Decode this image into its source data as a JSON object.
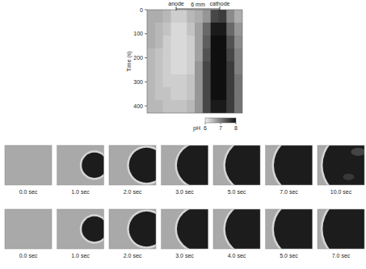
{
  "chart_data": {
    "type": "heatmap",
    "y_label": "Time (s)",
    "ylim": [
      0,
      430
    ],
    "yticks": [
      0,
      100,
      200,
      300,
      400
    ],
    "annotations": [
      "anode",
      "6 mm",
      "cathode"
    ],
    "cells": [
      [
        6.6,
        6.6,
        6.5,
        6.3,
        6.3,
        6.5,
        6.6,
        6.8,
        7.5,
        7.6,
        6.9,
        6.6
      ],
      [
        6.6,
        6.5,
        6.4,
        6.2,
        6.2,
        6.4,
        6.7,
        7.2,
        7.9,
        7.9,
        7.2,
        6.8
      ],
      [
        6.6,
        6.5,
        6.3,
        6.2,
        6.2,
        6.3,
        6.7,
        7.3,
        8.0,
        8.0,
        7.4,
        6.9
      ],
      [
        6.5,
        6.4,
        6.3,
        6.2,
        6.2,
        6.3,
        6.7,
        7.4,
        8.0,
        8.0,
        7.5,
        7.0
      ],
      [
        6.5,
        6.4,
        6.3,
        6.2,
        6.2,
        6.3,
        6.8,
        7.5,
        8.0,
        8.0,
        7.6,
        7.0
      ],
      [
        6.5,
        6.4,
        6.3,
        6.3,
        6.3,
        6.4,
        6.8,
        7.5,
        8.0,
        8.0,
        7.6,
        7.1
      ],
      [
        6.5,
        6.4,
        6.4,
        6.3,
        6.3,
        6.4,
        6.8,
        7.5,
        8.0,
        8.0,
        7.6,
        7.1
      ],
      [
        6.5,
        6.5,
        6.4,
        6.4,
        6.4,
        6.5,
        6.8,
        7.5,
        7.9,
        7.9,
        7.6,
        7.1
      ]
    ],
    "colorbar": {
      "label": "pH",
      "range": [
        6,
        8
      ],
      "ticks": [
        6,
        7,
        8
      ]
    }
  },
  "image_rows": [
    {
      "labels": [
        "0.0 sec",
        "1.0 sec",
        "2.0 sec",
        "3.0 sec",
        "5.0 sec",
        "7.0 sec",
        "10.0 sec"
      ]
    },
    {
      "labels": [
        "0.0 sec",
        "1.0 sec",
        "2.0 sec",
        "3.0 sec",
        "4.0 sec",
        "5.0 sec",
        "7.0 sec"
      ]
    }
  ]
}
